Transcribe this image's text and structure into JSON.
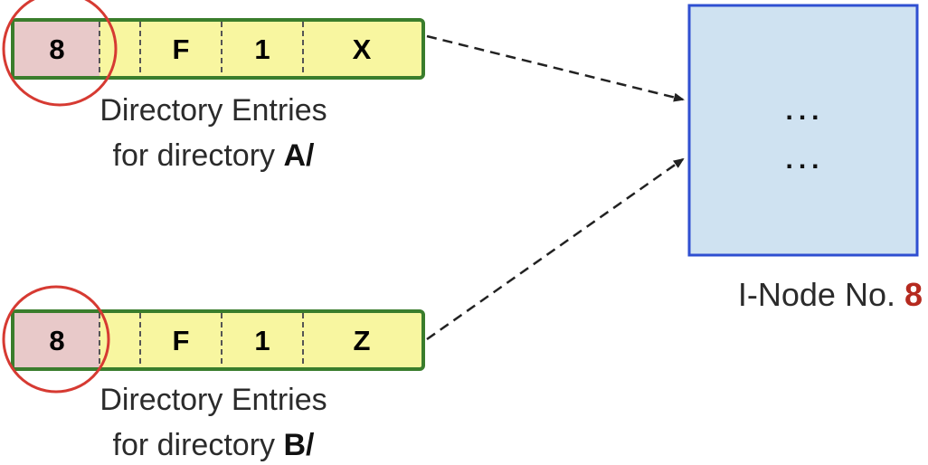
{
  "entries": [
    {
      "cells": [
        "8",
        "",
        "F",
        "1",
        "X"
      ],
      "caption_line1": "Directory Entries",
      "caption_line2_prefix": "for directory ",
      "caption_line2_dir": "A/"
    },
    {
      "cells": [
        "8",
        "",
        "F",
        "1",
        "Z"
      ],
      "caption_line1": "Directory Entries",
      "caption_line2_prefix": "for directory ",
      "caption_line2_dir": "B/"
    }
  ],
  "inode": {
    "dots_row1": "...",
    "dots_row2": "...",
    "label_prefix": "I-Node No. ",
    "label_number": "8"
  },
  "colors": {
    "entry_fill": "#f8f6a0",
    "entry_border": "#3a7d2c",
    "inode_cell_fill": "#e8c9c9",
    "highlight_circle": "#d63a32",
    "inode_fill": "#cfe2f1",
    "inode_border": "#2f4fd1",
    "inode_number": "#b52a1f",
    "arrow": "#222222"
  }
}
